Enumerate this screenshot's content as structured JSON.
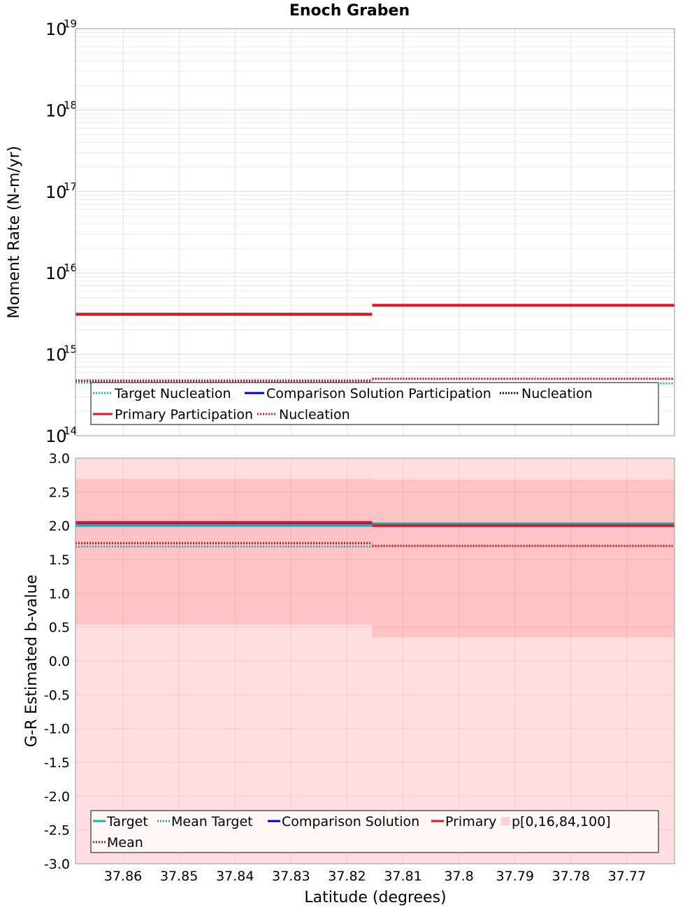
{
  "title": "Enoch Graben",
  "xlabel": "Latitude (degrees)",
  "colors": {
    "target": "#20b2aa",
    "comparison": "#0000cc",
    "primary": "#e0141e",
    "band_outer": "#ffdde0",
    "band_inner": "#ffc2c5"
  },
  "chart_data": [
    {
      "type": "line",
      "name": "moment-rate",
      "ylabel": "Moment Rate (N-m/yr)",
      "yscale": "log",
      "ylim": [
        100000000000000.0,
        1e+19
      ],
      "y_ticks": [
        {
          "base": "10",
          "exp": "14"
        },
        {
          "base": "10",
          "exp": "15"
        },
        {
          "base": "10",
          "exp": "16"
        },
        {
          "base": "10",
          "exp": "17"
        },
        {
          "base": "10",
          "exp": "18"
        },
        {
          "base": "10",
          "exp": "19"
        }
      ],
      "xlim": [
        37.8685,
        37.7615
      ],
      "x_reversed": true,
      "x_ticks": [
        37.86,
        37.85,
        37.84,
        37.83,
        37.82,
        37.81,
        37.8,
        37.79,
        37.78,
        37.77
      ],
      "grid": true,
      "legend_position": "bottom",
      "series": [
        {
          "name": "Target Nucleation",
          "color": "#20b2aa",
          "dash": "dot",
          "segments": [
            [
              37.8685,
              37.8155,
              450000000000000.0
            ],
            [
              37.8155,
              37.7615,
              440000000000000.0
            ]
          ]
        },
        {
          "name": "Comparison Solution Participation",
          "color": "#0000cc",
          "dash": "solid",
          "segments": [
            [
              37.8685,
              37.8155,
              3100000000000000.0
            ],
            [
              37.8155,
              37.7615,
              4000000000000000.0
            ]
          ]
        },
        {
          "name": "Nucleation",
          "color": "#0000cc",
          "dash": "dot",
          "segments": [
            [
              37.8685,
              37.8155,
              475000000000000.0
            ],
            [
              37.8155,
              37.7615,
              500000000000000.0
            ]
          ]
        },
        {
          "name": "Primary Participation",
          "color": "#e0141e",
          "dash": "solid",
          "segments": [
            [
              37.8685,
              37.8155,
              3100000000000000.0
            ],
            [
              37.8155,
              37.7615,
              4000000000000000.0
            ]
          ]
        },
        {
          "name": "Nucleation",
          "color": "#e0141e",
          "dash": "dot",
          "segments": [
            [
              37.8685,
              37.8155,
              475000000000000.0
            ],
            [
              37.8155,
              37.7615,
              500000000000000.0
            ]
          ]
        }
      ],
      "legend": [
        {
          "label": "Target Nucleation",
          "color": "#20b2aa",
          "dash": "dot"
        },
        {
          "label": "Comparison Solution Participation",
          "color": "#0000cc",
          "dash": "solid"
        },
        {
          "label": "Nucleation",
          "color": "#0000cc",
          "dash": "dot"
        },
        {
          "label": "Primary Participation",
          "color": "#e0141e",
          "dash": "solid"
        },
        {
          "label": "Nucleation",
          "color": "#e0141e",
          "dash": "dot"
        }
      ]
    },
    {
      "type": "line",
      "name": "b-value",
      "ylabel": "G-R Estimated b-value",
      "ylim": [
        -3.0,
        3.0
      ],
      "y_ticks": [
        "3.0",
        "2.5",
        "2.0",
        "1.5",
        "1.0",
        "0.5",
        "0.0",
        "-0.5",
        "-1.0",
        "-1.5",
        "-2.0",
        "-2.5",
        "-3.0"
      ],
      "xlim": [
        37.8685,
        37.7615
      ],
      "x_reversed": true,
      "x_ticks": [
        "37.86",
        "37.85",
        "37.84",
        "37.83",
        "37.82",
        "37.81",
        "37.8",
        "37.79",
        "37.78",
        "37.77"
      ],
      "grid": true,
      "legend_position": "bottom",
      "bands": [
        {
          "name": "p[0,16,84,100]",
          "segments": [
            {
              "x": [
                37.8685,
                37.8155
              ],
              "p0": -3.0,
              "p16": 0.54,
              "p84": 2.69,
              "p100": 3.0
            },
            {
              "x": [
                37.8155,
                37.7615
              ],
              "p0": -3.0,
              "p16": 0.35,
              "p84": 2.68,
              "p100": 3.0
            }
          ]
        }
      ],
      "series": [
        {
          "name": "Target",
          "color": "#20b2aa",
          "dash": "solid",
          "segments": [
            [
              37.8685,
              37.8155,
              2.0
            ],
            [
              37.8155,
              37.7615,
              2.03
            ]
          ]
        },
        {
          "name": "Mean Target",
          "color": "#20b2aa",
          "dash": "dot",
          "segments": [
            [
              37.8685,
              37.8155,
              1.69
            ],
            [
              37.8155,
              37.7615,
              1.7
            ]
          ]
        },
        {
          "name": "Comparison Solution",
          "color": "#0000cc",
          "dash": "solid",
          "segments": [
            [
              37.8685,
              37.8155,
              2.04
            ],
            [
              37.8155,
              37.7615,
              2.0
            ]
          ]
        },
        {
          "name": "Primary",
          "color": "#e0141e",
          "dash": "solid",
          "segments": [
            [
              37.8685,
              37.8155,
              2.05
            ],
            [
              37.8155,
              37.7615,
              2.0
            ]
          ]
        },
        {
          "name": "Mean",
          "color": "#e0141e",
          "dash": "dot",
          "segments": [
            [
              37.8685,
              37.8155,
              1.74
            ],
            [
              37.8155,
              37.7615,
              1.7
            ]
          ]
        }
      ],
      "legend": [
        {
          "label": "Target",
          "color": "#20b2aa",
          "dash": "solid"
        },
        {
          "label": "Mean Target",
          "color": "#20b2aa",
          "dash": "dot"
        },
        {
          "label": "Comparison Solution",
          "color": "#0000cc",
          "dash": "solid"
        },
        {
          "label": "Primary",
          "color": "#e0141e",
          "dash": "solid"
        },
        {
          "label": "p[0,16,84,100]",
          "color": "#ffd0d4",
          "dash": "box"
        },
        {
          "label": "Mean",
          "color": "#e0141e",
          "dash": "dot"
        }
      ]
    }
  ]
}
